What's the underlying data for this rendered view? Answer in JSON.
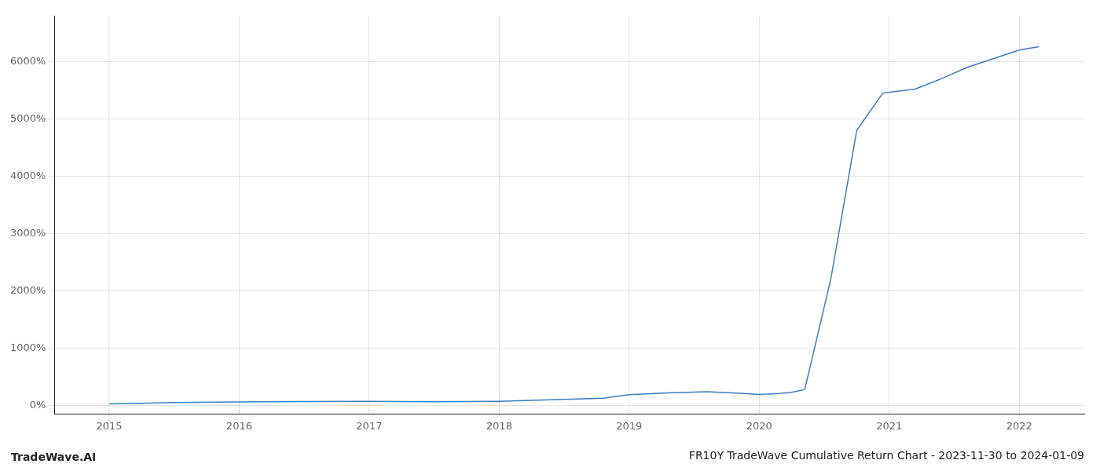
{
  "chart_data": {
    "type": "line",
    "title": "FR10Y TradeWave Cumulative Return Chart - 2023-11-30 to 2024-01-09",
    "annotations": [
      "TradeWave.AI"
    ],
    "x": [
      2015.0,
      2015.25,
      2015.5,
      2016.0,
      2016.5,
      2017.0,
      2017.5,
      2018.0,
      2018.4,
      2018.8,
      2019.0,
      2019.3,
      2019.6,
      2019.85,
      2020.0,
      2020.15,
      2020.25,
      2020.35,
      2020.55,
      2020.75,
      2020.95,
      2021.05,
      2021.2,
      2021.4,
      2021.6,
      2021.8,
      2022.0,
      2022.15
    ],
    "values": [
      30,
      40,
      55,
      65,
      70,
      75,
      68,
      75,
      100,
      130,
      190,
      220,
      240,
      215,
      195,
      210,
      230,
      280,
      2200,
      4800,
      5450,
      5480,
      5520,
      5700,
      5900,
      6050,
      6200,
      6260
    ],
    "color": "#3a7ebf",
    "xlim": [
      2014.58,
      2022.5
    ],
    "ylim": [
      -150,
      6800
    ],
    "xticks": [
      2015,
      2016,
      2017,
      2018,
      2019,
      2020,
      2021,
      2022
    ],
    "yticks": [
      {
        "value": 0,
        "label": "0%"
      },
      {
        "value": 1000,
        "label": "1000%"
      },
      {
        "value": 2000,
        "label": "2000%"
      },
      {
        "value": 3000,
        "label": "3000%"
      },
      {
        "value": 4000,
        "label": "4000%"
      },
      {
        "value": 5000,
        "label": "5000%"
      },
      {
        "value": 6000,
        "label": "6000%"
      }
    ],
    "grid": true
  }
}
